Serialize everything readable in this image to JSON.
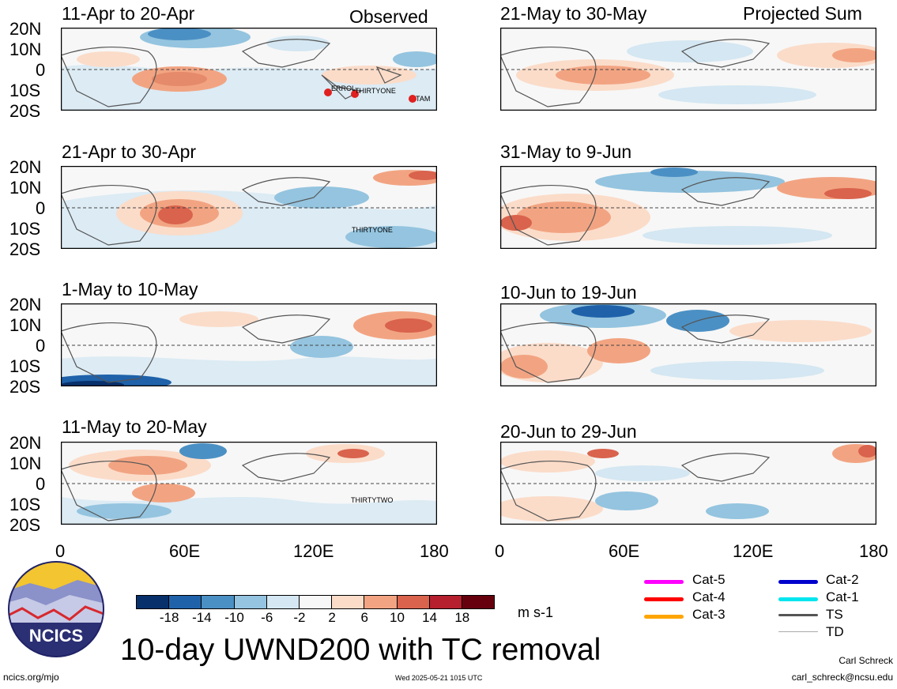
{
  "observed_label": "Observed",
  "projected_label": "Projected Sum",
  "lat_labels": [
    "20N",
    "10N",
    "0",
    "10S",
    "20S"
  ],
  "lon_labels": [
    "0",
    "60E",
    "120E",
    "180"
  ],
  "panels": [
    {
      "title": "11-Apr to 20-Apr",
      "storms": [
        "ERROL",
        "THIRTYONE",
        "TAM"
      ]
    },
    {
      "title": "21-Apr to 30-Apr",
      "storms": [
        "THIRTYONE"
      ]
    },
    {
      "title": "1-May to 10-May",
      "storms": []
    },
    {
      "title": "11-May to 20-May",
      "storms": [
        "THIRTYTWO"
      ]
    },
    {
      "title": "21-May to 30-May",
      "storms": []
    },
    {
      "title": "31-May to 9-Jun",
      "storms": []
    },
    {
      "title": "10-Jun to 19-Jun",
      "storms": []
    },
    {
      "title": "20-Jun to 29-Jun",
      "storms": []
    }
  ],
  "colorbar": {
    "tick_labels": [
      "-18",
      "-14",
      "-10",
      "-6",
      "-2",
      "2",
      "6",
      "10",
      "14",
      "18"
    ],
    "colors": [
      "#08306b",
      "#1f62aa",
      "#4b90c4",
      "#94c4df",
      "#d4e7f2",
      "#f7f7f7",
      "#fbdcc9",
      "#f2a482",
      "#d9634d",
      "#b51f2e",
      "#67000d"
    ],
    "units": "m s-1"
  },
  "legend": [
    {
      "label": "Cat-5",
      "color": "#ff00ff"
    },
    {
      "label": "Cat-4",
      "color": "#ff0000"
    },
    {
      "label": "Cat-3",
      "color": "#ffa500"
    },
    {
      "label": "Cat-2",
      "color": "#0000cd"
    },
    {
      "label": "Cat-1",
      "color": "#00e5ee"
    },
    {
      "label": "TS",
      "color": "#555555"
    },
    {
      "label": "TD",
      "color": "#aaaaaa"
    }
  ],
  "logo_text": "NCICS",
  "main_title": "10-day UWND200 with TC removal",
  "footer": {
    "left": "ncics.org/mjo",
    "center": "Wed 2025-05-21 1015 UTC",
    "author": "Carl Schreck",
    "email": "carl_schreck@ncsu.edu"
  }
}
